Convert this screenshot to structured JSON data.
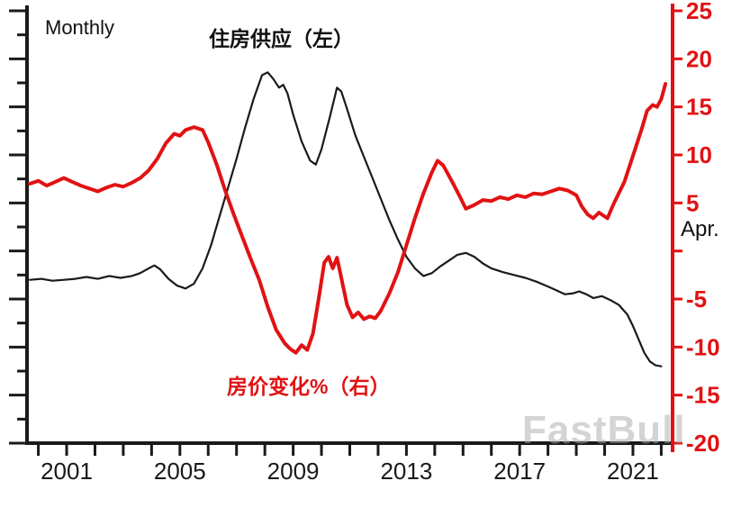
{
  "header": {
    "frequency_label": "Monthly"
  },
  "labels": {
    "series_black": "住房供应（左）",
    "series_red": "房价变化%（右）",
    "latest_point": "Apr."
  },
  "watermark": "FastBull",
  "colors": {
    "red": "#e11213",
    "black": "#1a1a1a",
    "watermark_gray": "#aaaaaa"
  },
  "chart_data": {
    "type": "line",
    "title": "",
    "x_axis": {
      "range": [
        1999.6,
        2022.4
      ],
      "tick_years_start": 2000,
      "tick_years_end": 2022,
      "labeled_years": [
        2001,
        2005,
        2009,
        2013,
        2017,
        2021
      ]
    },
    "right_axis": {
      "range": [
        -20,
        25
      ],
      "tick_values": [
        25,
        20,
        15,
        10,
        5,
        0,
        -5,
        -10,
        -15,
        -20
      ],
      "labeled_values": [
        25,
        20,
        15,
        10,
        5,
        -5,
        -10,
        -15,
        -20
      ],
      "zero_position_annotation": "Apr.",
      "annotation_value": 2.2,
      "unit": "%"
    },
    "left_axis": {
      "labels_visible": false,
      "note": "tick marks only; numeric labels are cropped out of view"
    },
    "series": [
      {
        "name": "住房供应（左）",
        "axis": "left",
        "color": "#1a1a1a",
        "width": 2.2,
        "note": "left axis unlabeled; values estimated on right-axis pixel scale for positioning",
        "points": [
          [
            1999.7,
            -3.0
          ],
          [
            2000.1,
            -2.9
          ],
          [
            2000.5,
            -3.1
          ],
          [
            2000.9,
            -3.0
          ],
          [
            2001.3,
            -2.9
          ],
          [
            2001.7,
            -2.7
          ],
          [
            2002.1,
            -2.9
          ],
          [
            2002.5,
            -2.6
          ],
          [
            2002.9,
            -2.8
          ],
          [
            2003.3,
            -2.6
          ],
          [
            2003.6,
            -2.3
          ],
          [
            2003.9,
            -1.8
          ],
          [
            2004.1,
            -1.5
          ],
          [
            2004.3,
            -1.9
          ],
          [
            2004.6,
            -2.9
          ],
          [
            2004.9,
            -3.6
          ],
          [
            2005.2,
            -3.9
          ],
          [
            2005.5,
            -3.4
          ],
          [
            2005.8,
            -1.8
          ],
          [
            2006.1,
            0.6
          ],
          [
            2006.4,
            3.6
          ],
          [
            2006.7,
            6.6
          ],
          [
            2007.0,
            9.6
          ],
          [
            2007.3,
            12.8
          ],
          [
            2007.6,
            15.8
          ],
          [
            2007.9,
            18.3
          ],
          [
            2008.1,
            18.6
          ],
          [
            2008.3,
            17.9
          ],
          [
            2008.5,
            17.0
          ],
          [
            2008.65,
            17.3
          ],
          [
            2008.8,
            16.4
          ],
          [
            2009.0,
            14.2
          ],
          [
            2009.3,
            11.4
          ],
          [
            2009.6,
            9.4
          ],
          [
            2009.8,
            9.0
          ],
          [
            2010.0,
            10.6
          ],
          [
            2010.3,
            14.0
          ],
          [
            2010.55,
            17.0
          ],
          [
            2010.7,
            16.6
          ],
          [
            2010.9,
            14.8
          ],
          [
            2011.2,
            12.0
          ],
          [
            2011.5,
            9.8
          ],
          [
            2011.8,
            7.6
          ],
          [
            2012.1,
            5.4
          ],
          [
            2012.4,
            3.2
          ],
          [
            2012.7,
            1.2
          ],
          [
            2013.0,
            -0.6
          ],
          [
            2013.3,
            -1.8
          ],
          [
            2013.6,
            -2.6
          ],
          [
            2013.9,
            -2.3
          ],
          [
            2014.2,
            -1.6
          ],
          [
            2014.5,
            -1.0
          ],
          [
            2014.8,
            -0.4
          ],
          [
            2015.1,
            -0.2
          ],
          [
            2015.4,
            -0.6
          ],
          [
            2015.7,
            -1.3
          ],
          [
            2016.0,
            -1.8
          ],
          [
            2016.4,
            -2.2
          ],
          [
            2016.8,
            -2.5
          ],
          [
            2017.2,
            -2.8
          ],
          [
            2017.6,
            -3.2
          ],
          [
            2018.0,
            -3.7
          ],
          [
            2018.3,
            -4.1
          ],
          [
            2018.6,
            -4.5
          ],
          [
            2018.9,
            -4.4
          ],
          [
            2019.1,
            -4.2
          ],
          [
            2019.35,
            -4.5
          ],
          [
            2019.6,
            -4.9
          ],
          [
            2019.9,
            -4.7
          ],
          [
            2020.2,
            -5.1
          ],
          [
            2020.5,
            -5.6
          ],
          [
            2020.8,
            -6.6
          ],
          [
            2021.0,
            -7.8
          ],
          [
            2021.2,
            -9.2
          ],
          [
            2021.4,
            -10.6
          ],
          [
            2021.6,
            -11.5
          ],
          [
            2021.8,
            -11.9
          ],
          [
            2022.0,
            -12.0
          ]
        ]
      },
      {
        "name": "房价变化%（右）",
        "axis": "right",
        "color": "#e11213",
        "width": 4,
        "unit": "%",
        "points": [
          [
            1999.7,
            7.0
          ],
          [
            2000.0,
            7.3
          ],
          [
            2000.3,
            6.8
          ],
          [
            2000.6,
            7.2
          ],
          [
            2000.9,
            7.6
          ],
          [
            2001.2,
            7.2
          ],
          [
            2001.5,
            6.8
          ],
          [
            2001.8,
            6.5
          ],
          [
            2002.1,
            6.2
          ],
          [
            2002.4,
            6.6
          ],
          [
            2002.7,
            6.9
          ],
          [
            2003.0,
            6.7
          ],
          [
            2003.3,
            7.1
          ],
          [
            2003.6,
            7.6
          ],
          [
            2003.9,
            8.4
          ],
          [
            2004.2,
            9.6
          ],
          [
            2004.5,
            11.2
          ],
          [
            2004.8,
            12.2
          ],
          [
            2005.0,
            12.0
          ],
          [
            2005.2,
            12.6
          ],
          [
            2005.5,
            12.9
          ],
          [
            2005.8,
            12.6
          ],
          [
            2006.0,
            11.3
          ],
          [
            2006.3,
            9.0
          ],
          [
            2006.6,
            6.3
          ],
          [
            2006.9,
            3.8
          ],
          [
            2007.2,
            1.5
          ],
          [
            2007.5,
            -0.8
          ],
          [
            2007.8,
            -3.0
          ],
          [
            2008.1,
            -5.8
          ],
          [
            2008.4,
            -8.2
          ],
          [
            2008.7,
            -9.6
          ],
          [
            2008.9,
            -10.2
          ],
          [
            2009.1,
            -10.6
          ],
          [
            2009.3,
            -9.8
          ],
          [
            2009.5,
            -10.3
          ],
          [
            2009.7,
            -8.6
          ],
          [
            2009.9,
            -5.0
          ],
          [
            2010.1,
            -1.2
          ],
          [
            2010.25,
            -0.6
          ],
          [
            2010.4,
            -1.8
          ],
          [
            2010.55,
            -0.7
          ],
          [
            2010.7,
            -2.8
          ],
          [
            2010.9,
            -5.6
          ],
          [
            2011.1,
            -6.9
          ],
          [
            2011.3,
            -6.4
          ],
          [
            2011.5,
            -7.1
          ],
          [
            2011.7,
            -6.8
          ],
          [
            2011.9,
            -7.0
          ],
          [
            2012.1,
            -6.2
          ],
          [
            2012.4,
            -4.4
          ],
          [
            2012.7,
            -2.2
          ],
          [
            2013.0,
            0.6
          ],
          [
            2013.3,
            3.4
          ],
          [
            2013.6,
            6.0
          ],
          [
            2013.9,
            8.2
          ],
          [
            2014.1,
            9.4
          ],
          [
            2014.3,
            8.9
          ],
          [
            2014.6,
            7.3
          ],
          [
            2014.9,
            5.6
          ],
          [
            2015.1,
            4.4
          ],
          [
            2015.4,
            4.8
          ],
          [
            2015.7,
            5.3
          ],
          [
            2016.0,
            5.2
          ],
          [
            2016.3,
            5.6
          ],
          [
            2016.6,
            5.4
          ],
          [
            2016.9,
            5.8
          ],
          [
            2017.2,
            5.6
          ],
          [
            2017.5,
            6.0
          ],
          [
            2017.8,
            5.9
          ],
          [
            2018.1,
            6.2
          ],
          [
            2018.4,
            6.5
          ],
          [
            2018.7,
            6.3
          ],
          [
            2019.0,
            5.8
          ],
          [
            2019.2,
            4.6
          ],
          [
            2019.4,
            3.8
          ],
          [
            2019.6,
            3.4
          ],
          [
            2019.8,
            4.0
          ],
          [
            2020.1,
            3.4
          ],
          [
            2020.3,
            4.8
          ],
          [
            2020.5,
            6.0
          ],
          [
            2020.7,
            7.2
          ],
          [
            2020.9,
            9.0
          ],
          [
            2021.1,
            10.8
          ],
          [
            2021.3,
            12.6
          ],
          [
            2021.5,
            14.6
          ],
          [
            2021.7,
            15.2
          ],
          [
            2021.85,
            15.0
          ],
          [
            2022.0,
            15.8
          ],
          [
            2022.15,
            17.4
          ]
        ]
      }
    ],
    "legend_position": "annotations-on-plot",
    "grid": false
  }
}
